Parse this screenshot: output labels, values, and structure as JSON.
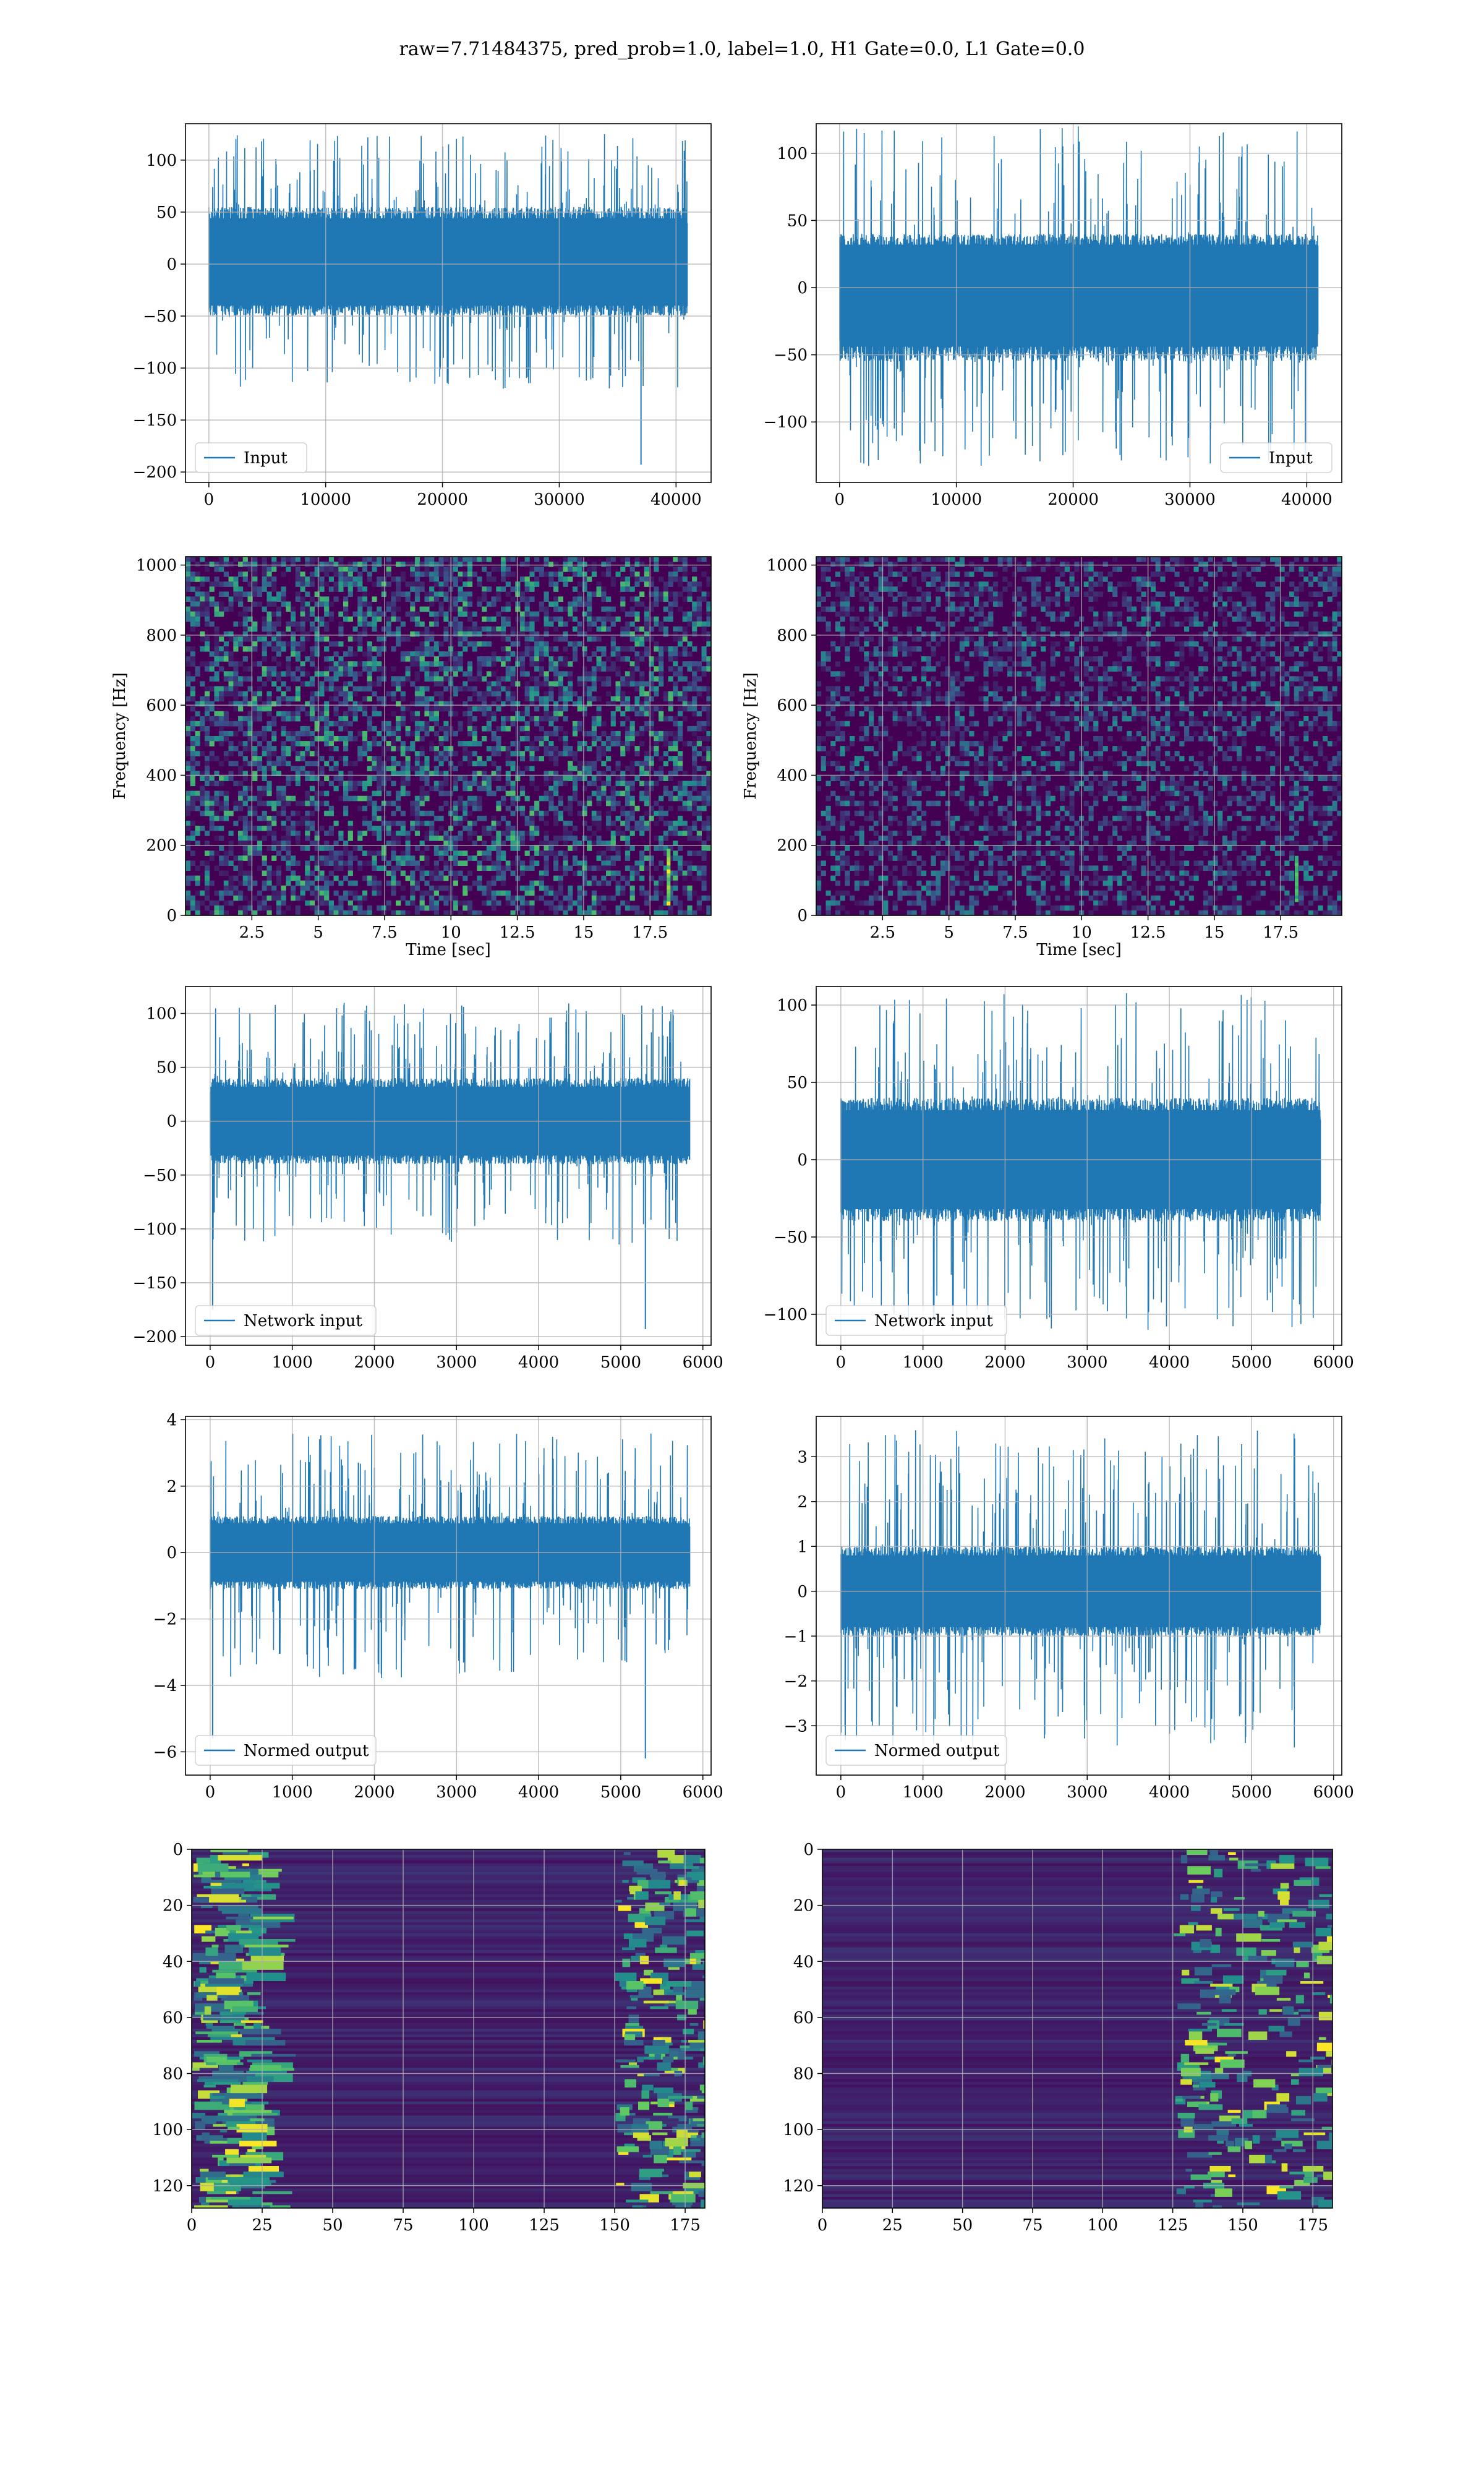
{
  "figure": {
    "suptitle": "raw=7.71484375, pred_prob=1.0, label=1.0, H1 Gate=0.0, L1 Gate=0.0"
  },
  "colors": {
    "line": "#1f77b4",
    "grid": "#b0b0b0",
    "viridis_dark": "#440154",
    "viridis_blue": "#3b528b",
    "viridis_teal": "#21918c",
    "viridis_green": "#5ec962",
    "viridis_yellow": "#fde725"
  },
  "chart_data": [
    {
      "id": "r0c0",
      "type": "line",
      "legend": "Input",
      "legend_loc": "lower left",
      "xlim": [
        -2000,
        43000
      ],
      "ylim": [
        -210,
        135
      ],
      "xticks": [
        0,
        10000,
        20000,
        30000,
        40000
      ],
      "yticks": [
        100,
        50,
        0,
        -50,
        -100,
        -150,
        -200
      ],
      "series": [
        {
          "name": "Input",
          "x_range": [
            0,
            40960
          ],
          "band_lo": -50,
          "band_hi": 55,
          "peak_lo": -120,
          "peak_hi": 125,
          "spikes": [
            {
              "x": 37000,
              "y": -193
            }
          ]
        }
      ],
      "xlabel": "",
      "ylabel": "",
      "grid": true
    },
    {
      "id": "r0c1",
      "type": "line",
      "legend": "Input",
      "legend_loc": "lower right",
      "xlim": [
        -2000,
        43000
      ],
      "ylim": [
        -145,
        122
      ],
      "xticks": [
        0,
        10000,
        20000,
        30000,
        40000
      ],
      "yticks": [
        100,
        50,
        0,
        -50,
        -100
      ],
      "series": [
        {
          "name": "Input",
          "x_range": [
            0,
            40960
          ],
          "band_lo": -55,
          "band_hi": 40,
          "peak_lo": -133,
          "peak_hi": 120,
          "spikes": []
        }
      ],
      "xlabel": "",
      "ylabel": "",
      "grid": true
    },
    {
      "id": "r1c0",
      "type": "heatmap",
      "subtype": "spectrogram",
      "xlim": [
        0,
        19.8
      ],
      "ylim": [
        0,
        1024
      ],
      "xticks": [
        2.5,
        5.0,
        7.5,
        10.0,
        12.5,
        15.0,
        17.5
      ],
      "yticks": [
        0,
        200,
        400,
        600,
        800,
        1000
      ],
      "xlabel": "Time [sec]",
      "ylabel": "Frequency [Hz]",
      "grid": true,
      "features": [
        {
          "t": 18.2,
          "f_lo": 30,
          "f_hi": 190,
          "strength": "bright"
        }
      ]
    },
    {
      "id": "r1c1",
      "type": "heatmap",
      "subtype": "spectrogram",
      "xlim": [
        0,
        19.8
      ],
      "ylim": [
        0,
        1024
      ],
      "xticks": [
        2.5,
        5.0,
        7.5,
        10.0,
        12.5,
        15.0,
        17.5
      ],
      "yticks": [
        0,
        200,
        400,
        600,
        800,
        1000
      ],
      "xlabel": "Time [sec]",
      "ylabel": "Frequency [Hz]",
      "grid": true,
      "features": [
        {
          "t": 18.1,
          "f_lo": 40,
          "f_hi": 170,
          "strength": "medium"
        }
      ]
    },
    {
      "id": "r2c0",
      "type": "line",
      "legend": "Network input",
      "legend_loc": "lower left",
      "xlim": [
        -300,
        6100
      ],
      "ylim": [
        -208,
        125
      ],
      "xticks": [
        0,
        1000,
        2000,
        3000,
        4000,
        5000,
        6000
      ],
      "yticks": [
        100,
        50,
        0,
        -50,
        -100,
        -150,
        -200
      ],
      "series": [
        {
          "name": "Network input",
          "x_range": [
            0,
            5840
          ],
          "band_lo": -40,
          "band_hi": 40,
          "peak_lo": -115,
          "peak_hi": 110,
          "spikes": [
            {
              "x": 30,
              "y": -175
            },
            {
              "x": 5300,
              "y": -193
            }
          ]
        }
      ],
      "xlabel": "",
      "ylabel": "",
      "grid": true
    },
    {
      "id": "r2c1",
      "type": "line",
      "legend": "Network input",
      "legend_loc": "lower left",
      "xlim": [
        -300,
        6100
      ],
      "ylim": [
        -120,
        112
      ],
      "xticks": [
        0,
        1000,
        2000,
        3000,
        4000,
        5000,
        6000
      ],
      "yticks": [
        100,
        50,
        0,
        -50,
        -100
      ],
      "series": [
        {
          "name": "Network input",
          "x_range": [
            0,
            5840
          ],
          "band_lo": -40,
          "band_hi": 40,
          "peak_lo": -110,
          "peak_hi": 108,
          "spikes": []
        }
      ],
      "xlabel": "",
      "ylabel": "",
      "grid": true
    },
    {
      "id": "r3c0",
      "type": "line",
      "legend": "Normed output",
      "legend_loc": "lower left",
      "xlim": [
        -300,
        6100
      ],
      "ylim": [
        -6.7,
        4.1
      ],
      "xticks": [
        0,
        1000,
        2000,
        3000,
        4000,
        5000,
        6000
      ],
      "yticks": [
        4,
        2,
        0,
        -2,
        -4,
        -6
      ],
      "series": [
        {
          "name": "Normed output",
          "x_range": [
            0,
            5840
          ],
          "band_lo": -1.1,
          "band_hi": 1.1,
          "peak_lo": -3.8,
          "peak_hi": 3.6,
          "spikes": [
            {
              "x": 30,
              "y": -5.6
            },
            {
              "x": 5300,
              "y": -6.2
            }
          ]
        }
      ],
      "xlabel": "",
      "ylabel": "",
      "grid": true
    },
    {
      "id": "r3c1",
      "type": "line",
      "legend": "Normed output",
      "legend_loc": "lower left",
      "xlim": [
        -300,
        6100
      ],
      "ylim": [
        -4.1,
        3.9
      ],
      "xticks": [
        0,
        1000,
        2000,
        3000,
        4000,
        5000,
        6000
      ],
      "yticks": [
        3,
        2,
        1,
        0,
        -1,
        -2,
        -3
      ],
      "series": [
        {
          "name": "Normed output",
          "x_range": [
            0,
            5840
          ],
          "band_lo": -1.0,
          "band_hi": 1.0,
          "peak_lo": -3.5,
          "peak_hi": 3.6,
          "spikes": []
        }
      ],
      "xlabel": "",
      "ylabel": "",
      "grid": true
    },
    {
      "id": "r4c0",
      "type": "heatmap",
      "subtype": "feature-map",
      "xlim": [
        0,
        182
      ],
      "ylim": [
        128,
        0
      ],
      "xticks": [
        0,
        25,
        50,
        75,
        100,
        125,
        150,
        175
      ],
      "yticks": [
        0,
        20,
        40,
        60,
        80,
        100,
        120
      ],
      "xlabel": "",
      "ylabel": "",
      "grid": true,
      "features": [
        {
          "region": "left",
          "cols": [
            0,
            22
          ]
        },
        {
          "region": "right",
          "cols": [
            150,
            182
          ]
        }
      ]
    },
    {
      "id": "r4c1",
      "type": "heatmap",
      "subtype": "feature-map",
      "xlim": [
        0,
        182
      ],
      "ylim": [
        128,
        0
      ],
      "xticks": [
        0,
        25,
        50,
        75,
        100,
        125,
        150,
        175
      ],
      "yticks": [
        0,
        20,
        40,
        60,
        80,
        100,
        120
      ],
      "xlabel": "",
      "ylabel": "",
      "grid": true,
      "features": [
        {
          "region": "right",
          "cols": [
            125,
            182
          ]
        }
      ]
    }
  ]
}
